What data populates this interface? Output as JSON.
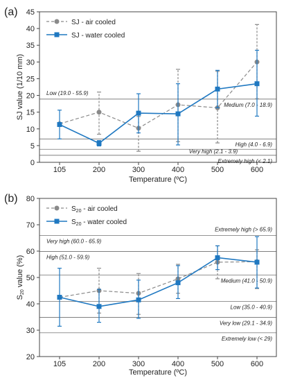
{
  "chart_data": [
    {
      "panel_label": "(a)",
      "type": "line",
      "x": [
        105,
        200,
        300,
        400,
        500,
        600
      ],
      "categories": [
        "105",
        "200",
        "300",
        "400",
        "500",
        "600"
      ],
      "xlabel": "Temperature (ºC)",
      "ylabel": "SJ value (1/10 mm)",
      "ylim": [
        0,
        45
      ],
      "yticks": [
        0,
        5,
        10,
        15,
        20,
        25,
        30,
        35,
        40,
        45
      ],
      "yticklabels": [
        "0",
        "5",
        "10",
        "15",
        "20",
        "25",
        "30",
        "35",
        "40",
        "45"
      ],
      "grid": false,
      "legend_position": "top-left",
      "series": [
        {
          "name": "SJ - air cooled",
          "color": "#8a8a8a",
          "style": "dashed",
          "marker": "circle",
          "values": [
            11.5,
            15.0,
            10.2,
            17.2,
            16.3,
            30.0
          ],
          "err_low": [
            null,
            8.4,
            3.3,
            6.2,
            5.8,
            19.0
          ],
          "err_high": [
            null,
            21.0,
            13.7,
            27.8,
            27.2,
            41.2
          ]
        },
        {
          "name": "SJ - water cooled",
          "color": "#1f78c1",
          "style": "solid",
          "marker": "square",
          "values": [
            11.3,
            5.7,
            14.7,
            14.5,
            21.9,
            23.5
          ],
          "err_low": [
            7.0,
            4.9,
            8.8,
            5.2,
            16.3,
            13.8
          ],
          "err_high": [
            15.6,
            6.5,
            20.5,
            23.5,
            27.5,
            33.5
          ]
        }
      ],
      "reference_lines": [
        {
          "value": 18.9,
          "label": "Low (19.0 - 55.9)",
          "side": "above",
          "align": "left"
        },
        {
          "value": 18.9,
          "label": "Medium (7.0 - 18.9)",
          "side": "below",
          "align": "right"
        },
        {
          "value": 7.0,
          "label": "High (4.0 - 6.9)",
          "side": "below",
          "align": "right"
        },
        {
          "value": 3.9,
          "label": "Very high (2.1 - 3.9)",
          "side": "within",
          "align": "center"
        },
        {
          "value": 2.1,
          "label": "Extremely high (< 2.1)",
          "side": "below",
          "align": "right"
        }
      ]
    },
    {
      "panel_label": "(b)",
      "type": "line",
      "x": [
        105,
        200,
        300,
        400,
        500,
        600
      ],
      "categories": [
        "105",
        "200",
        "300",
        "400",
        "500",
        "600"
      ],
      "xlabel": "Temperature (ºC)",
      "ylabel": "S20 value (%)",
      "ylim": [
        20,
        80
      ],
      "yticks": [
        20,
        30,
        40,
        50,
        60,
        70,
        80
      ],
      "yticklabels": [
        "20",
        "30",
        "40",
        "50",
        "60",
        "70",
        "80"
      ],
      "grid": false,
      "legend_position": "top-left",
      "series": [
        {
          "name": "S20 - air cooled",
          "color": "#8a8a8a",
          "style": "dashed",
          "marker": "circle",
          "values": [
            42.5,
            45.0,
            44.0,
            49.5,
            55.8,
            56.0
          ],
          "err_low": [
            null,
            36.5,
            36.0,
            44.0,
            49.5,
            45.8
          ],
          "err_high": [
            null,
            53.5,
            51.5,
            55.0,
            62.0,
            60.5
          ]
        },
        {
          "name": "S20 - water cooled",
          "color": "#1f78c1",
          "style": "solid",
          "marker": "square",
          "values": [
            42.5,
            39.0,
            41.5,
            48.0,
            57.5,
            55.8
          ],
          "err_low": [
            31.5,
            33.0,
            34.5,
            42.0,
            53.0,
            46.0
          ],
          "err_high": [
            53.5,
            45.5,
            49.0,
            54.5,
            62.0,
            65.5
          ]
        }
      ],
      "reference_lines": [
        {
          "value": 65.9,
          "label": "Extremely high (> 65.9)",
          "side": "above",
          "align": "right"
        },
        {
          "value": 65.9,
          "label": "Very high (60.0 - 65.9)",
          "side": "below",
          "align": "left"
        },
        {
          "value": 59.9,
          "label": "High (51.0 - 59.9)",
          "side": "below",
          "align": "left"
        },
        {
          "value": 50.9,
          "label": "Medium (41.0 - 50.9)",
          "side": "below",
          "align": "right"
        },
        {
          "value": 40.9,
          "label": "Low (35.0 - 40.9)",
          "side": "below",
          "align": "right"
        },
        {
          "value": 34.9,
          "label": "Very low (29.1 - 34.9)",
          "side": "below",
          "align": "right"
        },
        {
          "value": 29.0,
          "label": "Extremely low (< 29)",
          "side": "below",
          "align": "right"
        }
      ]
    }
  ]
}
